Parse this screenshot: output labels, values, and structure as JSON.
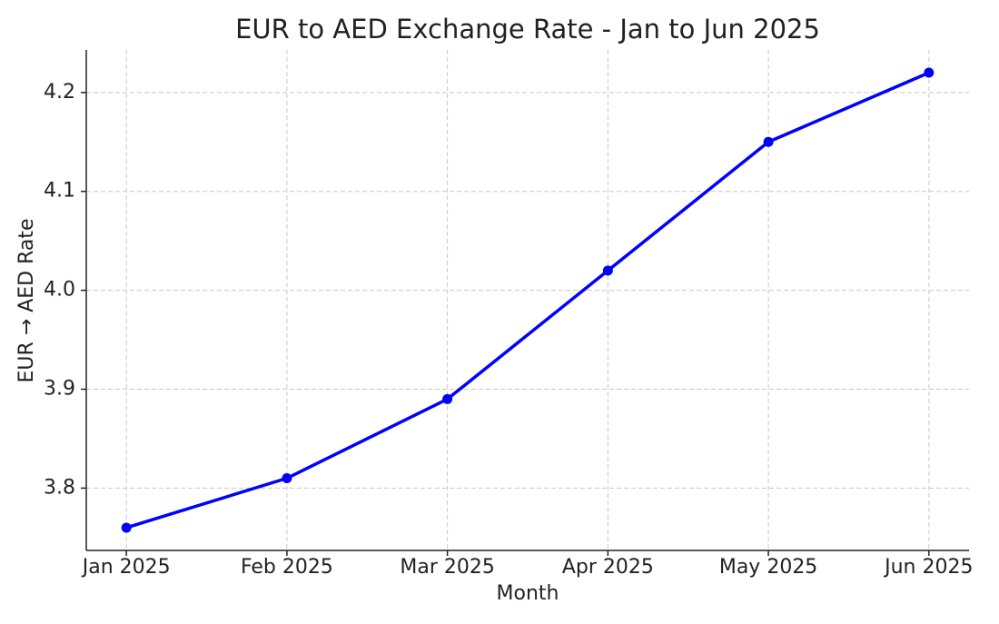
{
  "chart_data": {
    "type": "line",
    "title": "EUR to AED Exchange Rate - Jan to Jun 2025",
    "x_label": "Month",
    "y_label": "EUR → AED Rate",
    "categories": [
      "Jan 2025",
      "Feb 2025",
      "Mar 2025",
      "Apr 2025",
      "May 2025",
      "Jun 2025"
    ],
    "values": [
      3.76,
      3.81,
      3.89,
      4.02,
      4.15,
      4.22
    ],
    "color": "#0000ff",
    "ylim": [
      3.737,
      4.243
    ],
    "yticks": [
      3.8,
      3.9,
      {
        "value": 4,
        "label": "4.0"
      },
      4.1,
      4.2
    ],
    "grid": true,
    "markers": true
  }
}
